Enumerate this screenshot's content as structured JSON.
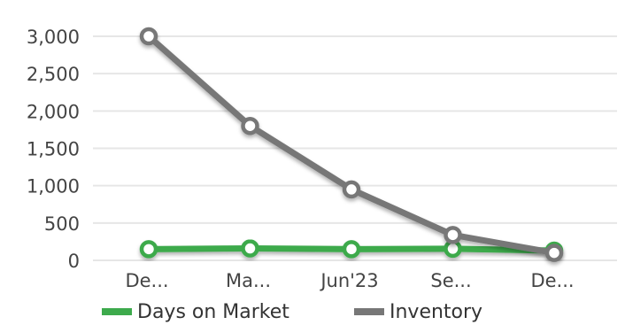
{
  "chart_data": {
    "type": "line",
    "categories": [
      "De...",
      "Ma...",
      "Jun'23",
      "Se...",
      "De..."
    ],
    "ylim": [
      0,
      3000
    ],
    "yticks": [
      0,
      500,
      1000,
      1500,
      2000,
      2500,
      3000
    ],
    "ytick_labels": [
      "0",
      "500",
      "1,000",
      "1,500",
      "2,000",
      "2,500",
      "3,000"
    ],
    "grid": true,
    "legend_position": "bottom",
    "series": [
      {
        "name": "Days on Market",
        "color": "#3daa4c",
        "values": [
          150,
          160,
          150,
          155,
          130
        ]
      },
      {
        "name": "Inventory",
        "color": "#777777",
        "values": [
          3000,
          1800,
          950,
          340,
          100
        ]
      }
    ]
  }
}
